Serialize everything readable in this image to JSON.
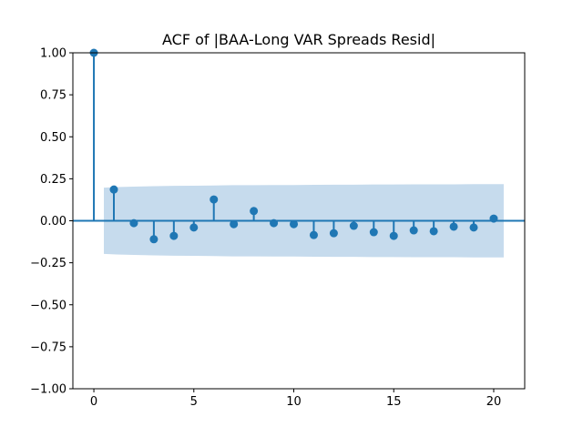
{
  "chart_data": {
    "type": "stem",
    "title": "ACF of |BAA-Long VAR Spreads Resid|",
    "xlabel": "",
    "ylabel": "",
    "xlim": [
      -1.05,
      21.55
    ],
    "ylim": [
      -1.0,
      1.0
    ],
    "grid": false,
    "x_ticks": [
      0,
      5,
      10,
      15,
      20
    ],
    "x_tick_labels": [
      "0",
      "5",
      "10",
      "15",
      "20"
    ],
    "y_ticks": [
      -1.0,
      -0.75,
      -0.5,
      -0.25,
      0.0,
      0.25,
      0.5,
      0.75,
      1.0
    ],
    "y_tick_labels": [
      "−1.00",
      "−0.75",
      "−0.50",
      "−0.25",
      "0.00",
      "0.25",
      "0.50",
      "0.75",
      "1.00"
    ],
    "lags": [
      0,
      1,
      2,
      3,
      4,
      5,
      6,
      7,
      8,
      9,
      10,
      11,
      12,
      13,
      14,
      15,
      16,
      17,
      18,
      19,
      20
    ],
    "acf": [
      1.0,
      0.186,
      -0.014,
      -0.11,
      -0.09,
      -0.04,
      0.127,
      -0.02,
      0.058,
      -0.014,
      -0.02,
      -0.085,
      -0.074,
      -0.03,
      -0.068,
      -0.09,
      -0.057,
      -0.062,
      -0.035,
      -0.04,
      0.013
    ],
    "confint_halfwidth": [
      0.197,
      0.2,
      0.203,
      0.206,
      0.208,
      0.209,
      0.21,
      0.212,
      0.212,
      0.213,
      0.213,
      0.214,
      0.215,
      0.215,
      0.216,
      0.216,
      0.217,
      0.217,
      0.217,
      0.218,
      0.218
    ],
    "color": "#1f77b4",
    "band_color": "#c6dbed"
  }
}
